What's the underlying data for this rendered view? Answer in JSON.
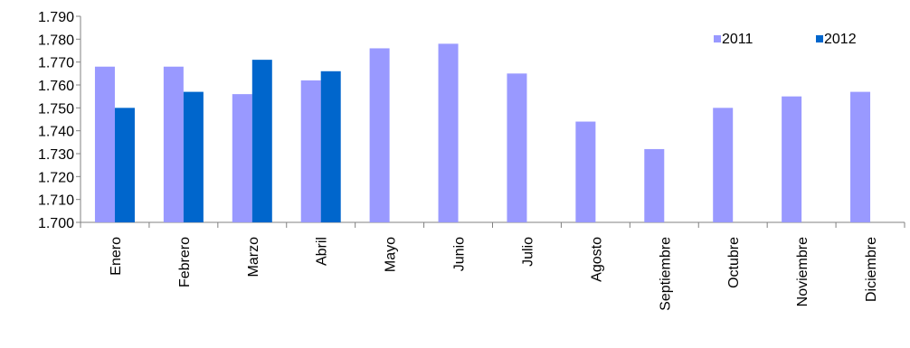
{
  "chart_data": {
    "type": "bar",
    "title": "",
    "xlabel": "",
    "ylabel": "",
    "categories": [
      "Enero",
      "Febrero",
      "Marzo",
      "Abril",
      "Mayo",
      "Junio",
      "Julio",
      "Agosto",
      "Septiembre",
      "Octubre",
      "Noviembre",
      "Diciembre"
    ],
    "series": [
      {
        "name": "2011",
        "color": "#9999FF",
        "values": [
          1768,
          1768,
          1756,
          1762,
          1776,
          1778,
          1765,
          1744,
          1732,
          1750,
          1755,
          1757
        ]
      },
      {
        "name": "2012",
        "color": "#0066CC",
        "values": [
          1750,
          1757,
          1771,
          1766,
          null,
          null,
          null,
          null,
          null,
          null,
          null,
          null
        ]
      }
    ],
    "ylim": [
      1700,
      1790
    ],
    "yticks": [
      1700,
      1710,
      1720,
      1730,
      1740,
      1750,
      1760,
      1770,
      1780,
      1790
    ],
    "ytick_labels": [
      "1.700",
      "1.710",
      "1.720",
      "1.730",
      "1.740",
      "1.750",
      "1.760",
      "1.770",
      "1.780",
      "1.790"
    ],
    "grid": false,
    "legend_position": "top-right"
  }
}
